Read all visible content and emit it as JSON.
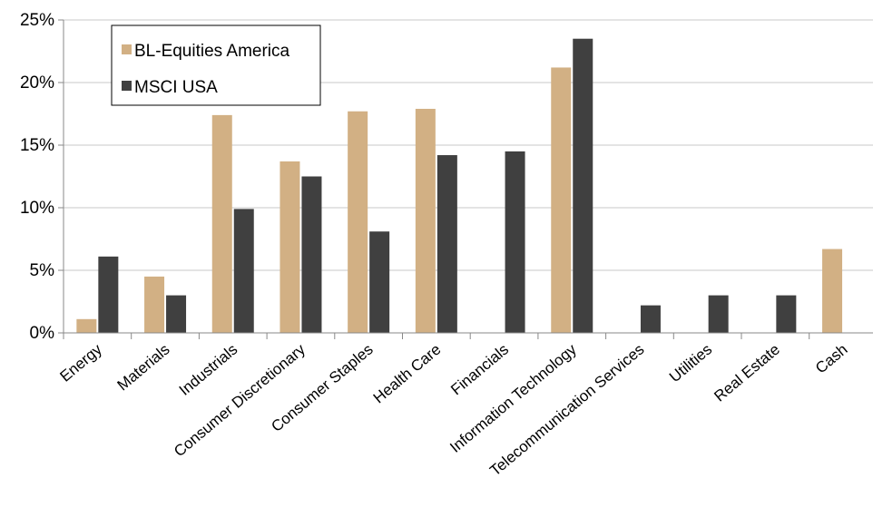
{
  "chart_data": {
    "type": "bar",
    "categories": [
      "Energy",
      "Materials",
      "Industrials",
      "Consumer Discretionary",
      "Consumer Staples",
      "Health Care",
      "Financials",
      "Information Technology",
      "Telecommunication Services",
      "Utilities",
      "Real Estate",
      "Cash"
    ],
    "series": [
      {
        "name": "BL-Equities America",
        "color": "#d2b084",
        "values": [
          1.1,
          4.5,
          17.4,
          13.7,
          17.7,
          17.9,
          0,
          21.2,
          0,
          0,
          0,
          6.7
        ]
      },
      {
        "name": "MSCI USA",
        "color": "#404040",
        "values": [
          6.1,
          3.0,
          9.9,
          12.5,
          8.1,
          14.2,
          14.5,
          23.5,
          2.2,
          3.0,
          3.0,
          0
        ]
      }
    ],
    "title": "",
    "xlabel": "",
    "ylabel": "",
    "ylim": [
      0,
      25
    ],
    "yticks": [
      "0%",
      "5%",
      "10%",
      "15%",
      "20%",
      "25%"
    ],
    "grid": true,
    "legend_position": "top-left"
  }
}
